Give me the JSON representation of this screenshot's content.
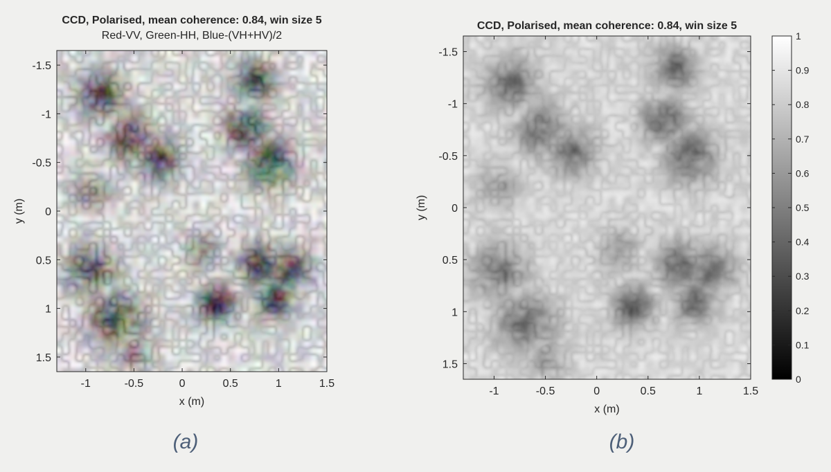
{
  "chart_data": [
    {
      "type": "heatmap",
      "title": "CCD, Polarised, mean coherence: 0.84, win size 5",
      "subtitle": "Red-VV, Green-HH, Blue-(VH+HV)/2",
      "xlabel": "x (m)",
      "ylabel": "y (m)",
      "xlim": [
        -1.3,
        1.5
      ],
      "ylim": [
        -1.65,
        1.65
      ],
      "y_reversed": true,
      "xticks": [
        -1,
        -0.5,
        0,
        0.5,
        1,
        1.5
      ],
      "xtick_labels": [
        "-1",
        "-0.5",
        "0",
        "0.5",
        "1",
        "1.5"
      ],
      "yticks": [
        -1.5,
        -1,
        -0.5,
        0,
        0.5,
        1,
        1.5
      ],
      "ytick_labels": [
        "-1.5",
        "-1",
        "-0.5",
        "0",
        "0.5",
        "1",
        "1.5"
      ],
      "colormode": "rgb composite",
      "low_coherence_regions": [
        {
          "x": -0.85,
          "y": -1.2,
          "r": 0.25,
          "w": 0.85
        },
        {
          "x": 0.75,
          "y": -1.35,
          "r": 0.2,
          "w": 0.9
        },
        {
          "x": 0.65,
          "y": -0.85,
          "r": 0.22,
          "w": 0.9
        },
        {
          "x": -0.55,
          "y": -0.75,
          "r": 0.25,
          "w": 0.8
        },
        {
          "x": -0.25,
          "y": -0.55,
          "r": 0.22,
          "w": 0.85
        },
        {
          "x": 0.9,
          "y": -0.5,
          "r": 0.25,
          "w": 0.9
        },
        {
          "x": -0.95,
          "y": 0.6,
          "r": 0.25,
          "w": 0.8
        },
        {
          "x": -0.7,
          "y": 1.1,
          "r": 0.28,
          "w": 0.85
        },
        {
          "x": 0.35,
          "y": 0.95,
          "r": 0.2,
          "w": 0.95
        },
        {
          "x": 0.8,
          "y": 0.55,
          "r": 0.22,
          "w": 0.9
        },
        {
          "x": 1.1,
          "y": 0.6,
          "r": 0.22,
          "w": 0.85
        },
        {
          "x": 0.95,
          "y": 0.9,
          "r": 0.2,
          "w": 0.85
        },
        {
          "x": -0.95,
          "y": -0.2,
          "r": 0.2,
          "w": 0.5
        },
        {
          "x": 0.2,
          "y": 0.4,
          "r": 0.2,
          "w": 0.45
        },
        {
          "x": -0.5,
          "y": 1.45,
          "r": 0.2,
          "w": 0.55
        }
      ]
    },
    {
      "type": "heatmap",
      "title": "CCD, Polarised, mean coherence: 0.84, win size 5",
      "xlabel": "x (m)",
      "ylabel": "y (m)",
      "xlim": [
        -1.3,
        1.5
      ],
      "ylim": [
        -1.65,
        1.65
      ],
      "y_reversed": true,
      "xticks": [
        -1,
        -0.5,
        0,
        0.5,
        1,
        1.5
      ],
      "xtick_labels": [
        "-1",
        "-0.5",
        "0",
        "0.5",
        "1",
        "1.5"
      ],
      "yticks": [
        -1.5,
        -1,
        -0.5,
        0,
        0.5,
        1,
        1.5
      ],
      "ytick_labels": [
        "-1.5",
        "-1",
        "-0.5",
        "0",
        "0.5",
        "1",
        "1.5"
      ],
      "colormap": "gray",
      "clim": [
        0,
        1
      ],
      "colorbar_ticks": [
        0,
        0.1,
        0.2,
        0.3,
        0.4,
        0.5,
        0.6,
        0.7,
        0.8,
        0.9,
        1
      ],
      "colorbar_tick_labels": [
        "0",
        "0.1",
        "0.2",
        "0.3",
        "0.4",
        "0.5",
        "0.6",
        "0.7",
        "0.8",
        "0.9",
        "1"
      ],
      "mean_coherence": 0.84,
      "low_coherence_regions": [
        {
          "x": -0.85,
          "y": -1.2,
          "r": 0.25,
          "w": 0.85
        },
        {
          "x": 0.75,
          "y": -1.35,
          "r": 0.2,
          "w": 0.9
        },
        {
          "x": 0.65,
          "y": -0.85,
          "r": 0.22,
          "w": 0.9
        },
        {
          "x": -0.55,
          "y": -0.75,
          "r": 0.25,
          "w": 0.8
        },
        {
          "x": -0.25,
          "y": -0.55,
          "r": 0.22,
          "w": 0.85
        },
        {
          "x": 0.9,
          "y": -0.5,
          "r": 0.25,
          "w": 0.9
        },
        {
          "x": -0.95,
          "y": 0.6,
          "r": 0.25,
          "w": 0.8
        },
        {
          "x": -0.7,
          "y": 1.1,
          "r": 0.28,
          "w": 0.85
        },
        {
          "x": 0.35,
          "y": 0.95,
          "r": 0.2,
          "w": 0.95
        },
        {
          "x": 0.8,
          "y": 0.55,
          "r": 0.22,
          "w": 0.9
        },
        {
          "x": 1.1,
          "y": 0.6,
          "r": 0.22,
          "w": 0.85
        },
        {
          "x": 0.95,
          "y": 0.9,
          "r": 0.2,
          "w": 0.85
        },
        {
          "x": -0.95,
          "y": -0.2,
          "r": 0.2,
          "w": 0.5
        },
        {
          "x": 0.2,
          "y": 0.4,
          "r": 0.2,
          "w": 0.45
        },
        {
          "x": -0.5,
          "y": 1.45,
          "r": 0.2,
          "w": 0.55
        }
      ]
    }
  ],
  "captions": {
    "a": "(a)",
    "b": "(b)"
  }
}
